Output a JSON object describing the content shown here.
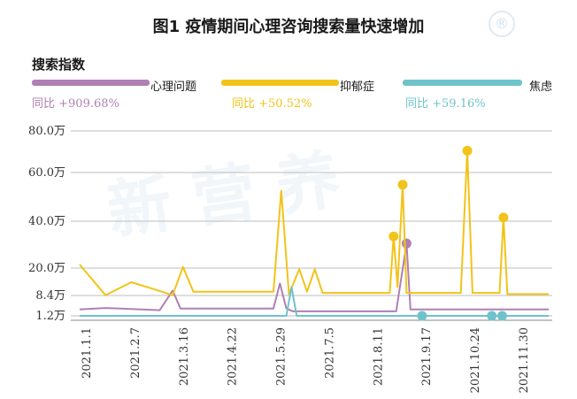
{
  "title": "图1  疫情期间心理咨询搜索量快速增加",
  "watermark": "新营养",
  "chart_data": {
    "type": "line",
    "subtitle": "搜索指数",
    "x_ticks": [
      "2021.1.1",
      "2021.2.7",
      "2021.3.16",
      "2021.4.22",
      "2021.5.29",
      "2021.7.5",
      "2021.8.11",
      "2021.9.17",
      "2021.10.24",
      "2021.11.30"
    ],
    "y_ticks": [
      {
        "label": "1.2万",
        "value": 1.2
      },
      {
        "label": "8.4万",
        "value": 8.4
      },
      {
        "label": "20.0万",
        "value": 20.0
      },
      {
        "label": "40.0万",
        "value": 40.0
      },
      {
        "label": "60.0万",
        "value": 60.0
      },
      {
        "label": "80.0万",
        "value": 80.0
      }
    ],
    "ylim": [
      0,
      80
    ],
    "xlim": [
      0,
      363
    ],
    "grid": true,
    "legend_position": "top",
    "series": [
      {
        "name": "心理问题",
        "color": "#B07FB3",
        "stat": "同比 +909.68%",
        "points": [
          [
            0,
            3.5
          ],
          [
            20,
            4.0
          ],
          [
            62,
            3.2
          ],
          [
            72,
            10.5
          ],
          [
            78,
            3.8
          ],
          [
            150,
            3.8
          ],
          [
            155,
            13.5
          ],
          [
            160,
            3.8
          ],
          [
            165,
            2.8
          ],
          [
            200,
            2.8
          ],
          [
            245,
            2.8
          ],
          [
            253,
            30.5
          ],
          [
            256,
            3.5
          ],
          [
            300,
            3.5
          ],
          [
            330,
            3.5
          ],
          [
            363,
            3.5
          ]
        ],
        "markers": [
          [
            253,
            30.5
          ]
        ]
      },
      {
        "name": "抑郁症",
        "color": "#F2C318",
        "stat": "同比 +50.52%",
        "points": [
          [
            0,
            21.5
          ],
          [
            20,
            8.5
          ],
          [
            40,
            14.0
          ],
          [
            58,
            11.0
          ],
          [
            72,
            8.5
          ],
          [
            80,
            20.5
          ],
          [
            88,
            10.0
          ],
          [
            150,
            10.0
          ],
          [
            156,
            52.5
          ],
          [
            162,
            9.0
          ],
          [
            170,
            19.5
          ],
          [
            176,
            10.0
          ],
          [
            182,
            19.5
          ],
          [
            188,
            9.5
          ],
          [
            240,
            9.5
          ],
          [
            243,
            33.5
          ],
          [
            246,
            12.0
          ],
          [
            250,
            55.0
          ],
          [
            253,
            9.5
          ],
          [
            295,
            9.5
          ],
          [
            300,
            70.5
          ],
          [
            304,
            9.5
          ],
          [
            325,
            9.5
          ],
          [
            328,
            41.5
          ],
          [
            331,
            9.0
          ],
          [
            363,
            9.0
          ]
        ],
        "markers": [
          [
            243,
            33.5
          ],
          [
            250,
            55.0
          ],
          [
            300,
            70.5
          ],
          [
            328,
            41.5
          ]
        ]
      },
      {
        "name": "焦虑",
        "color": "#6EC3CB",
        "stat": "同比 +59.16%",
        "points": [
          [
            0,
            1.2
          ],
          [
            160,
            1.2
          ],
          [
            164,
            12.0
          ],
          [
            168,
            1.2
          ],
          [
            363,
            1.2
          ]
        ],
        "markers": [
          [
            265,
            1.2
          ],
          [
            319,
            1.2
          ],
          [
            327,
            1.2
          ]
        ]
      }
    ]
  }
}
